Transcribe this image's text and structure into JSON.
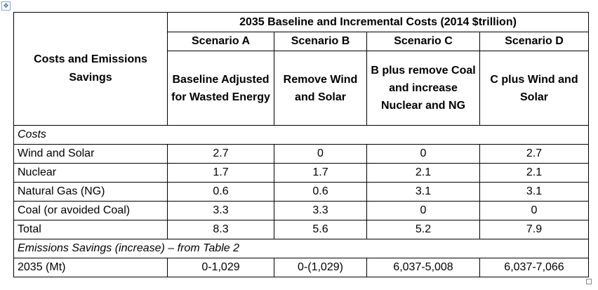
{
  "header": {
    "group_title": "2035 Baseline and Incremental Costs (2014 $trillion)",
    "row_label": "Costs and Emissions Savings",
    "scenarios": [
      {
        "name": "Scenario A",
        "description": "Baseline Adjusted for Wasted Energy"
      },
      {
        "name": "Scenario B",
        "description": "Remove Wind and Solar"
      },
      {
        "name": "Scenario C",
        "description": "B plus remove Coal and increase Nuclear and NG"
      },
      {
        "name": "Scenario D",
        "description": "C plus Wind and Solar"
      }
    ]
  },
  "sections": [
    {
      "title": "Costs",
      "rows": [
        {
          "label": "Wind and Solar",
          "values": [
            "2.7",
            "0",
            "0",
            "2.7"
          ]
        },
        {
          "label": "Nuclear",
          "values": [
            "1.7",
            "1.7",
            "2.1",
            "2.1"
          ]
        },
        {
          "label": "Natural Gas (NG)",
          "values": [
            "0.6",
            "0.6",
            "3.1",
            "3.1"
          ]
        },
        {
          "label": "Coal (or avoided Coal)",
          "values": [
            "3.3",
            "3.3",
            "0",
            "0"
          ]
        },
        {
          "label": "Total",
          "values": [
            "8.3",
            "5.6",
            "5.2",
            "7.9"
          ]
        }
      ]
    },
    {
      "title": "Emissions Savings (increase) – from Table 2",
      "rows": [
        {
          "label": "2035 (Mt)",
          "values": [
            "0-1,029",
            "0-(1,029)",
            "6,037-5,008",
            "6,037-7,066"
          ]
        }
      ]
    }
  ]
}
